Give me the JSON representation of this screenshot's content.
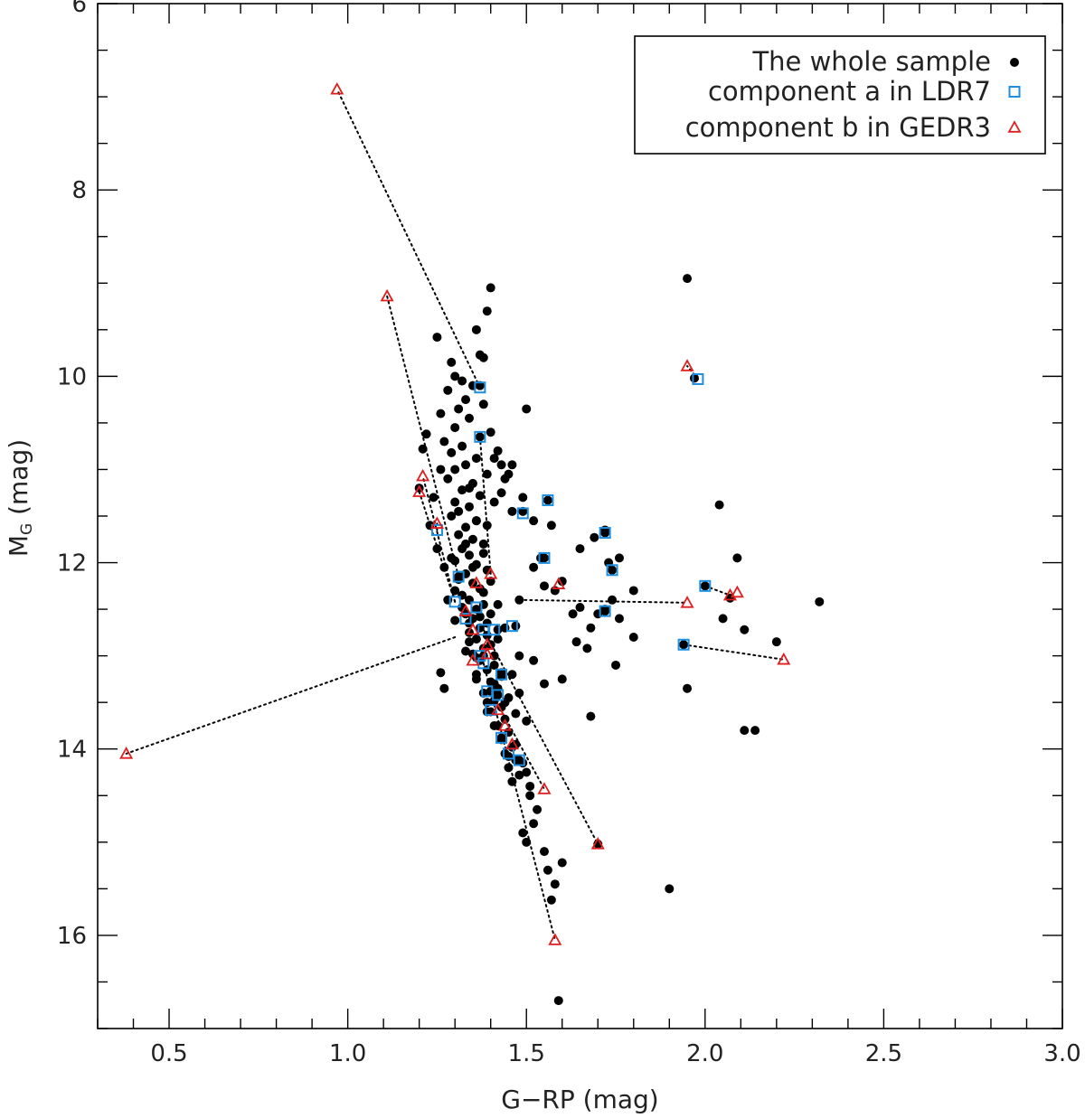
{
  "chart_data": {
    "type": "scatter",
    "xlabel": "G−RP (mag)",
    "ylabel_main": "M",
    "ylabel_sub": "G",
    "ylabel_unit": " (mag)",
    "xlim": [
      0.3,
      3.0
    ],
    "ylim": [
      17.0,
      6.0
    ],
    "y_inverted": true,
    "x_ticks": [
      "0.5",
      "1.0",
      "1.5",
      "2.0",
      "2.5",
      "3.0"
    ],
    "y_ticks": [
      "6",
      "8",
      "10",
      "12",
      "14",
      "16"
    ],
    "grid": false,
    "legend_position": "top-right",
    "colors": {
      "whole_sample": "#000000",
      "component_a": "#1e8fe0",
      "component_b": "#e01e1e",
      "frame": "#000000"
    },
    "legend": [
      {
        "label": "The whole sample",
        "marker": "filled-circle"
      },
      {
        "label": "component a in LDR7",
        "marker": "open-square"
      },
      {
        "label": "component b in GEDR3",
        "marker": "open-triangle"
      }
    ],
    "series": [
      {
        "name": "The whole sample",
        "marker": "filled-circle",
        "points": [
          [
            1.4,
            9.05
          ],
          [
            1.39,
            9.3
          ],
          [
            1.38,
            9.8
          ],
          [
            1.37,
            9.77
          ],
          [
            1.25,
            9.58
          ],
          [
            1.36,
            9.5
          ],
          [
            1.29,
            9.85
          ],
          [
            1.3,
            10.0
          ],
          [
            1.32,
            10.05
          ],
          [
            1.35,
            10.1
          ],
          [
            1.28,
            10.15
          ],
          [
            1.33,
            10.25
          ],
          [
            1.31,
            10.35
          ],
          [
            1.26,
            10.4
          ],
          [
            1.34,
            10.45
          ],
          [
            1.3,
            10.55
          ],
          [
            1.22,
            10.62
          ],
          [
            1.27,
            10.7
          ],
          [
            1.32,
            10.75
          ],
          [
            1.21,
            10.78
          ],
          [
            1.29,
            10.82
          ],
          [
            1.36,
            10.88
          ],
          [
            1.33,
            10.95
          ],
          [
            1.3,
            11.0
          ],
          [
            1.41,
            10.88
          ],
          [
            1.43,
            10.95
          ],
          [
            1.39,
            11.05
          ],
          [
            1.28,
            11.1
          ],
          [
            1.35,
            11.15
          ],
          [
            1.32,
            11.22
          ],
          [
            1.37,
            11.28
          ],
          [
            1.3,
            11.35
          ],
          [
            1.34,
            11.4
          ],
          [
            1.29,
            11.5
          ],
          [
            1.36,
            11.55
          ],
          [
            1.33,
            11.62
          ],
          [
            1.31,
            11.7
          ],
          [
            1.35,
            11.75
          ],
          [
            1.38,
            11.8
          ],
          [
            1.32,
            11.85
          ],
          [
            1.34,
            11.92
          ],
          [
            1.3,
            11.98
          ],
          [
            1.36,
            12.02
          ],
          [
            1.39,
            12.08
          ],
          [
            1.33,
            12.12
          ],
          [
            1.31,
            12.18
          ],
          [
            1.35,
            12.22
          ],
          [
            1.37,
            12.28
          ],
          [
            1.32,
            12.35
          ],
          [
            1.34,
            12.4
          ],
          [
            1.38,
            12.45
          ],
          [
            1.36,
            12.5
          ],
          [
            1.33,
            12.55
          ],
          [
            1.35,
            12.6
          ],
          [
            1.39,
            12.65
          ],
          [
            1.37,
            12.7
          ],
          [
            1.34,
            12.75
          ],
          [
            1.36,
            12.82
          ],
          [
            1.4,
            12.88
          ],
          [
            1.38,
            12.92
          ],
          [
            1.35,
            12.98
          ],
          [
            1.37,
            13.05
          ],
          [
            1.41,
            13.1
          ],
          [
            1.39,
            13.15
          ],
          [
            1.36,
            13.2
          ],
          [
            1.4,
            13.28
          ],
          [
            1.42,
            13.35
          ],
          [
            1.38,
            13.4
          ],
          [
            1.41,
            13.48
          ],
          [
            1.43,
            13.55
          ],
          [
            1.4,
            13.6
          ],
          [
            1.44,
            13.68
          ],
          [
            1.42,
            13.75
          ],
          [
            1.45,
            13.82
          ],
          [
            1.43,
            13.9
          ],
          [
            1.46,
            13.98
          ],
          [
            1.44,
            14.05
          ],
          [
            1.47,
            14.12
          ],
          [
            1.45,
            14.2
          ],
          [
            1.48,
            14.28
          ],
          [
            1.46,
            14.35
          ],
          [
            1.5,
            14.25
          ],
          [
            1.51,
            14.5
          ],
          [
            1.53,
            14.65
          ],
          [
            1.52,
            14.8
          ],
          [
            1.49,
            14.9
          ],
          [
            1.5,
            15.0
          ],
          [
            1.55,
            15.1
          ],
          [
            1.56,
            15.3
          ],
          [
            1.58,
            15.45
          ],
          [
            1.57,
            15.62
          ],
          [
            1.6,
            15.22
          ],
          [
            1.59,
            16.7
          ],
          [
            1.27,
            13.35
          ],
          [
            1.26,
            13.18
          ],
          [
            1.2,
            11.2
          ],
          [
            1.5,
            10.35
          ],
          [
            1.46,
            10.95
          ],
          [
            1.45,
            11.05
          ],
          [
            1.43,
            11.25
          ],
          [
            1.46,
            11.45
          ],
          [
            1.49,
            11.3
          ],
          [
            1.52,
            11.55
          ],
          [
            1.57,
            11.6
          ],
          [
            1.55,
            11.95
          ],
          [
            1.52,
            12.05
          ],
          [
            1.55,
            12.25
          ],
          [
            1.58,
            12.3
          ],
          [
            1.6,
            12.2
          ],
          [
            1.48,
            12.4
          ],
          [
            1.63,
            12.55
          ],
          [
            1.65,
            12.48
          ],
          [
            1.68,
            12.7
          ],
          [
            1.64,
            12.85
          ],
          [
            1.67,
            12.92
          ],
          [
            1.7,
            12.55
          ],
          [
            1.72,
            12.5
          ],
          [
            1.74,
            12.4
          ],
          [
            1.76,
            12.6
          ],
          [
            1.8,
            12.8
          ],
          [
            1.75,
            13.1
          ],
          [
            1.52,
            13.05
          ],
          [
            1.48,
            13.0
          ],
          [
            1.55,
            13.3
          ],
          [
            1.6,
            13.25
          ],
          [
            1.68,
            13.65
          ],
          [
            1.73,
            12.0
          ],
          [
            1.69,
            11.73
          ],
          [
            1.65,
            11.85
          ],
          [
            1.72,
            11.65
          ],
          [
            1.76,
            11.95
          ],
          [
            1.8,
            12.3
          ],
          [
            1.95,
            8.95
          ],
          [
            1.97,
            10.02
          ],
          [
            2.04,
            11.38
          ],
          [
            2.09,
            11.95
          ],
          [
            2.05,
            12.6
          ],
          [
            2.11,
            12.72
          ],
          [
            2.2,
            12.85
          ],
          [
            2.32,
            12.42
          ],
          [
            1.95,
            13.35
          ],
          [
            2.11,
            13.8
          ],
          [
            2.14,
            13.8
          ],
          [
            1.9,
            15.5
          ],
          [
            1.37,
            10.1
          ],
          [
            1.37,
            10.65
          ],
          [
            1.49,
            11.45
          ],
          [
            1.56,
            11.33
          ],
          [
            1.54,
            11.95
          ],
          [
            1.72,
            11.68
          ],
          [
            1.74,
            12.08
          ],
          [
            1.72,
            12.52
          ],
          [
            2.0,
            12.25
          ],
          [
            2.07,
            12.38
          ],
          [
            1.94,
            12.88
          ],
          [
            1.47,
            12.68
          ],
          [
            1.42,
            12.72
          ],
          [
            1.43,
            13.18
          ],
          [
            1.42,
            13.42
          ],
          [
            1.39,
            13.6
          ],
          [
            1.43,
            13.88
          ],
          [
            1.45,
            14.08
          ],
          [
            1.48,
            14.12
          ],
          [
            1.7,
            15.02
          ],
          [
            1.31,
            12.15
          ],
          [
            1.34,
            12.65
          ],
          [
            1.36,
            13.02
          ],
          [
            1.4,
            13.38
          ],
          [
            1.3,
            12.3
          ],
          [
            1.32,
            12.48
          ],
          [
            1.34,
            12.85
          ],
          [
            1.38,
            13.0
          ],
          [
            1.41,
            13.3
          ],
          [
            1.44,
            13.5
          ],
          [
            1.37,
            12.58
          ],
          [
            1.39,
            12.78
          ],
          [
            1.41,
            13.0
          ],
          [
            1.43,
            13.22
          ],
          [
            1.45,
            13.45
          ],
          [
            1.47,
            13.62
          ],
          [
            1.31,
            11.45
          ],
          [
            1.33,
            11.8
          ],
          [
            1.35,
            12.05
          ],
          [
            1.38,
            12.32
          ],
          [
            1.4,
            12.55
          ],
          [
            1.42,
            12.82
          ],
          [
            1.29,
            11.95
          ],
          [
            1.3,
            12.62
          ],
          [
            1.33,
            12.95
          ],
          [
            1.36,
            13.25
          ],
          [
            1.39,
            13.5
          ],
          [
            1.41,
            13.75
          ],
          [
            1.34,
            11.2
          ],
          [
            1.36,
            11.55
          ],
          [
            1.38,
            11.9
          ],
          [
            1.4,
            12.2
          ],
          [
            1.42,
            12.45
          ],
          [
            1.44,
            12.7
          ],
          [
            1.46,
            13.2
          ],
          [
            1.48,
            13.4
          ],
          [
            1.5,
            13.7
          ],
          [
            1.47,
            13.95
          ],
          [
            1.49,
            14.15
          ],
          [
            1.51,
            14.4
          ],
          [
            1.26,
            11.0
          ],
          [
            1.24,
            11.3
          ],
          [
            1.23,
            11.6
          ],
          [
            1.25,
            11.85
          ],
          [
            1.27,
            12.05
          ],
          [
            1.28,
            12.4
          ],
          [
            1.38,
            10.3
          ],
          [
            1.4,
            10.6
          ],
          [
            1.42,
            10.8
          ],
          [
            1.44,
            11.1
          ],
          [
            1.41,
            11.35
          ],
          [
            1.39,
            11.6
          ]
        ]
      },
      {
        "name": "component a in LDR7",
        "marker": "open-square",
        "points": [
          [
            1.37,
            10.12
          ],
          [
            1.37,
            10.65
          ],
          [
            1.49,
            11.47
          ],
          [
            1.56,
            11.33
          ],
          [
            1.55,
            11.95
          ],
          [
            1.72,
            11.68
          ],
          [
            1.74,
            12.08
          ],
          [
            1.72,
            12.52
          ],
          [
            1.98,
            10.03
          ],
          [
            2.0,
            12.25
          ],
          [
            1.94,
            12.88
          ],
          [
            1.25,
            11.65
          ],
          [
            1.31,
            12.15
          ],
          [
            1.3,
            12.42
          ],
          [
            1.33,
            12.6
          ],
          [
            1.36,
            12.48
          ],
          [
            1.38,
            12.72
          ],
          [
            1.41,
            12.72
          ],
          [
            1.46,
            12.68
          ],
          [
            1.37,
            13.0
          ],
          [
            1.38,
            13.08
          ],
          [
            1.43,
            13.2
          ],
          [
            1.39,
            13.38
          ],
          [
            1.42,
            13.42
          ],
          [
            1.4,
            13.58
          ],
          [
            1.43,
            13.88
          ],
          [
            1.45,
            14.05
          ],
          [
            1.48,
            14.12
          ]
        ]
      },
      {
        "name": "component b in GEDR3",
        "marker": "open-triangle",
        "points": [
          [
            0.97,
            6.92
          ],
          [
            1.11,
            9.14
          ],
          [
            1.21,
            11.07
          ],
          [
            1.2,
            11.24
          ],
          [
            1.25,
            11.58
          ],
          [
            0.38,
            14.05
          ],
          [
            1.95,
            9.89
          ],
          [
            2.07,
            12.35
          ],
          [
            2.09,
            12.32
          ],
          [
            1.95,
            12.43
          ],
          [
            2.22,
            13.04
          ],
          [
            1.59,
            12.23
          ],
          [
            1.4,
            12.12
          ],
          [
            1.36,
            12.22
          ],
          [
            1.33,
            12.52
          ],
          [
            1.35,
            12.72
          ],
          [
            1.39,
            12.88
          ],
          [
            1.35,
            13.05
          ],
          [
            1.39,
            12.98
          ],
          [
            1.42,
            13.58
          ],
          [
            1.44,
            13.75
          ],
          [
            1.46,
            13.95
          ],
          [
            1.55,
            14.43
          ],
          [
            1.7,
            15.02
          ],
          [
            1.58,
            16.05
          ]
        ]
      }
    ],
    "pairs": [
      {
        "a": [
          1.37,
          10.12
        ],
        "b": [
          0.97,
          6.92
        ]
      },
      {
        "a": [
          1.31,
          12.15
        ],
        "b": [
          1.11,
          9.14
        ]
      },
      {
        "a": [
          1.3,
          12.42
        ],
        "b": [
          1.21,
          11.07
        ]
      },
      {
        "a": [
          1.3,
          12.42
        ],
        "b": [
          1.2,
          11.24
        ]
      },
      {
        "a": [
          1.25,
          11.65
        ],
        "b": [
          1.25,
          11.58
        ]
      },
      {
        "a": [
          1.3,
          12.8
        ],
        "b": [
          0.38,
          14.05
        ]
      },
      {
        "a": [
          1.98,
          10.03
        ],
        "b": [
          1.95,
          9.89
        ]
      },
      {
        "a": [
          2.0,
          12.25
        ],
        "b": [
          2.07,
          12.35
        ]
      },
      {
        "a": [
          1.48,
          12.4
        ],
        "b": [
          1.95,
          12.43
        ]
      },
      {
        "a": [
          1.94,
          12.88
        ],
        "b": [
          2.22,
          13.04
        ]
      },
      {
        "a": [
          1.38,
          12.72
        ],
        "b": [
          1.7,
          15.02
        ]
      },
      {
        "a": [
          1.4,
          13.38
        ],
        "b": [
          1.55,
          14.43
        ]
      },
      {
        "a": [
          1.38,
          13.08
        ],
        "b": [
          1.58,
          16.05
        ]
      },
      {
        "a": [
          1.37,
          10.65
        ],
        "b": [
          1.4,
          12.12
        ]
      }
    ]
  }
}
